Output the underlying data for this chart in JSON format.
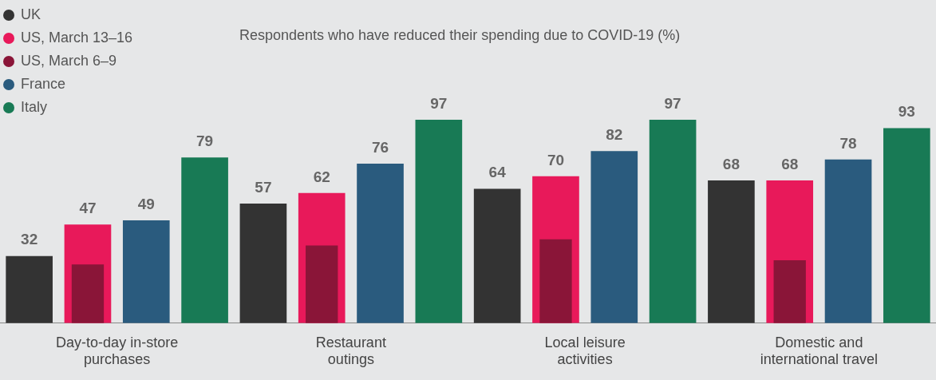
{
  "chart_data": {
    "type": "bar",
    "title": "Respondents who have reduced their spending due to COVID-19 (%)",
    "categories": [
      "Day-to-day in-store\npurchases",
      "Restaurant\noutings",
      "Local leisure\nactivities",
      "Domestic and\ninternational travel"
    ],
    "series": [
      {
        "name": "UK",
        "color": "#333333",
        "values": [
          32,
          57,
          64,
          68
        ],
        "value_labels": [
          "32",
          "57",
          "64",
          "68"
        ]
      },
      {
        "name": "US, March 13–16",
        "color": "#e8195a",
        "values": [
          47,
          62,
          70,
          68
        ],
        "value_labels": [
          "47",
          "62",
          "70",
          "68"
        ]
      },
      {
        "name": "US, March 6–9",
        "color": "#8a1538",
        "values": [
          28,
          37,
          40,
          30
        ],
        "value_labels": [
          null,
          null,
          null,
          null
        ]
      },
      {
        "name": "France",
        "color": "#2a5b7e",
        "values": [
          49,
          76,
          82,
          78
        ],
        "value_labels": [
          "49",
          "76",
          "82",
          "78"
        ]
      },
      {
        "name": "Italy",
        "color": "#187a55",
        "values": [
          79,
          97,
          97,
          93
        ],
        "value_labels": [
          "79",
          "97",
          "97",
          "93"
        ]
      }
    ],
    "legend": "top left",
    "grid": false
  }
}
